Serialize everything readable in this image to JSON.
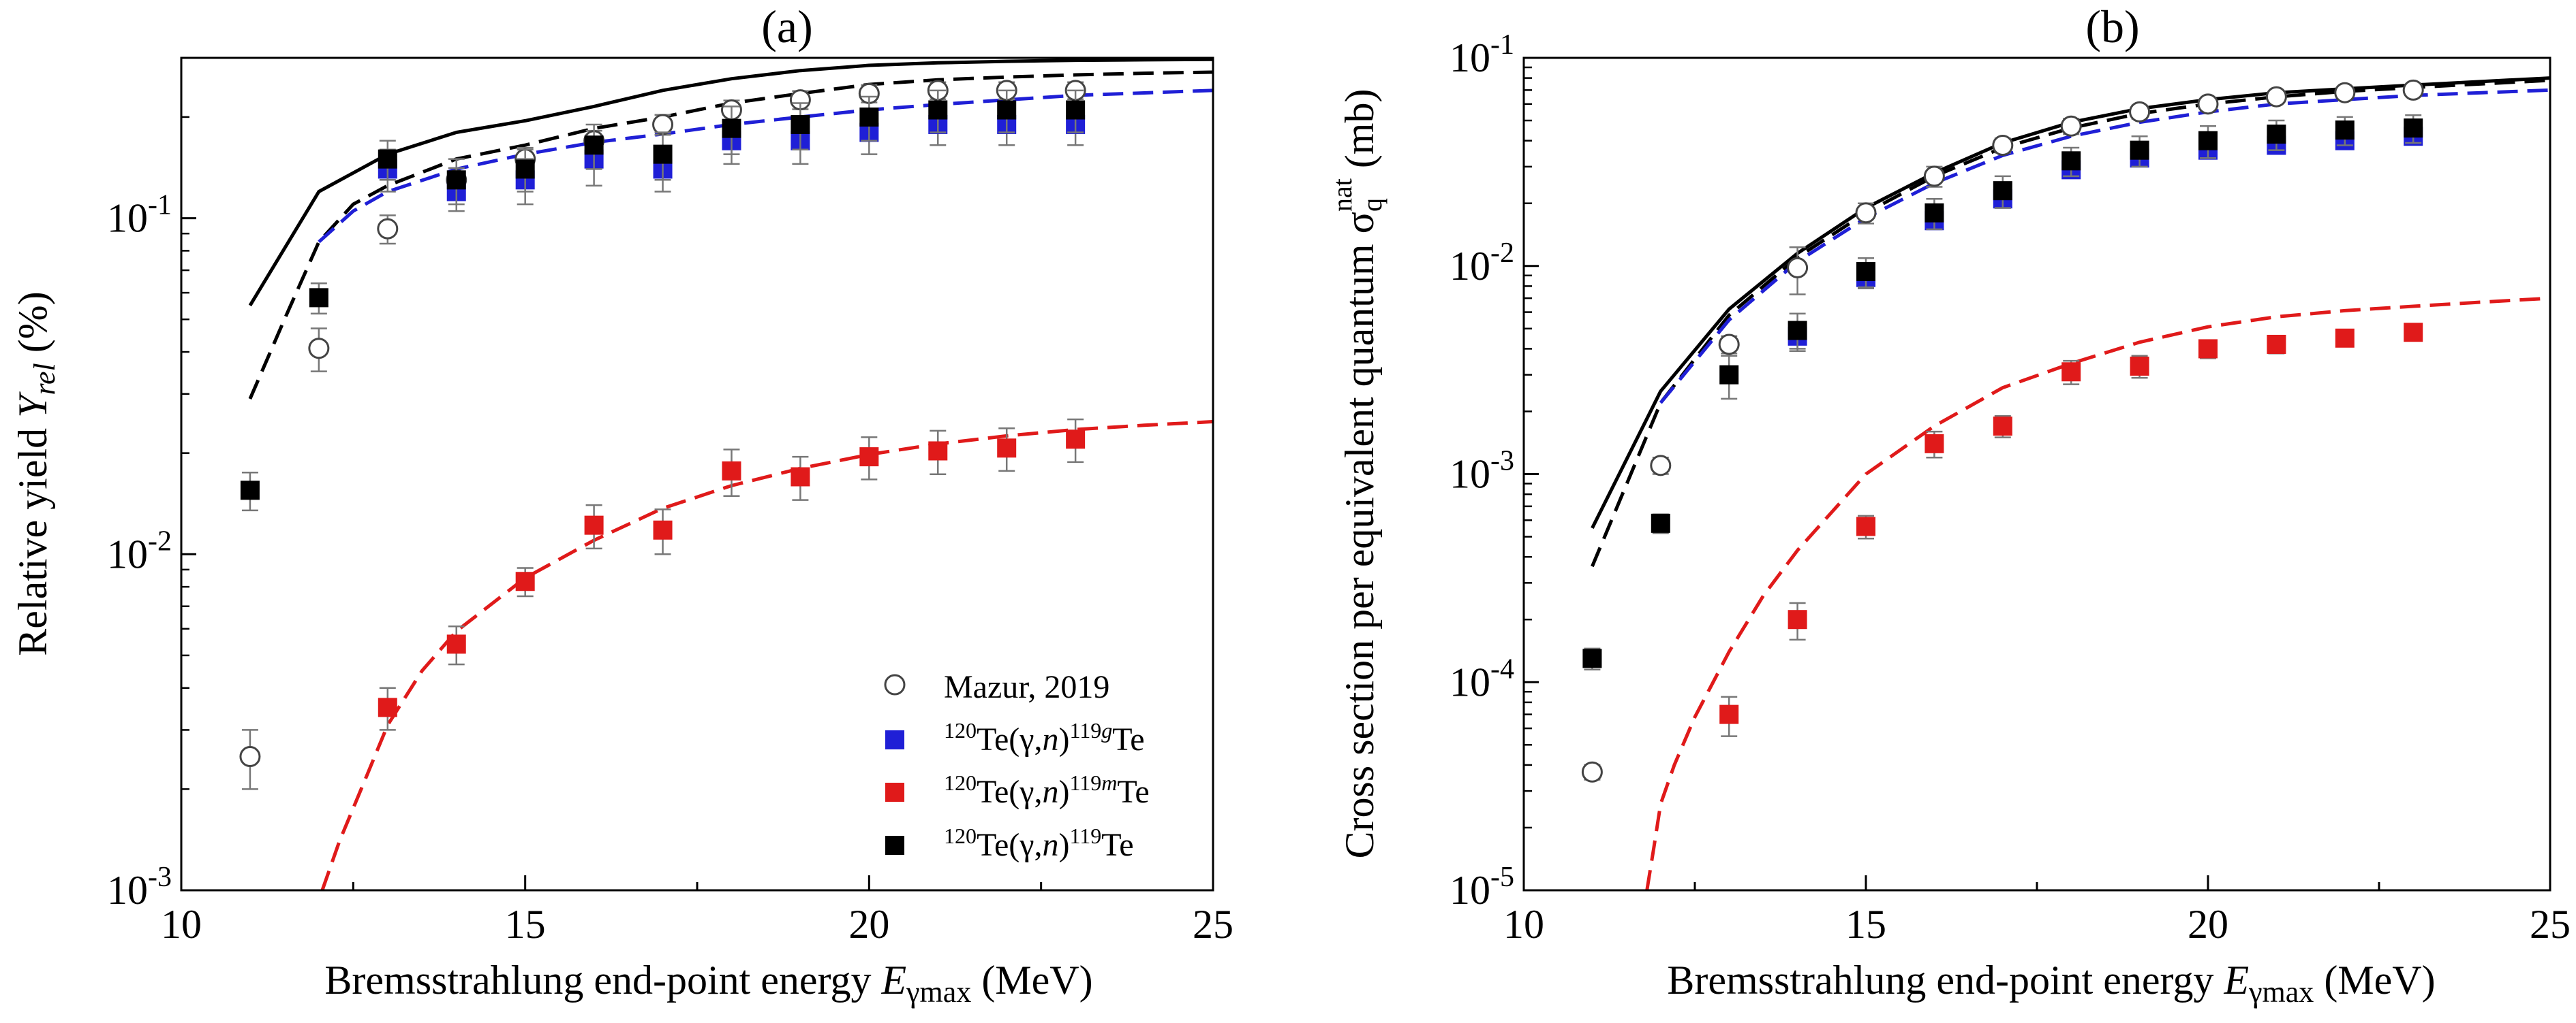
{
  "colors": {
    "black": "#000000",
    "blue": "#1f1fd6",
    "red": "#e01a1a",
    "errorbar": "#777777",
    "open_circle": "#444444"
  },
  "legend": {
    "mazur": "Mazur, 2019",
    "g_prefix": "120",
    "g_mid": "Te(γ,",
    "g_n": "n",
    "g_close": ")",
    "g_sup": "119",
    "g_state": "g",
    "g_suffix": "Te",
    "m_prefix": "120",
    "m_mid": "Te(γ,",
    "m_n": "n",
    "m_close": ")",
    "m_sup": "119",
    "m_state": "m",
    "m_suffix": "Te",
    "t_prefix": "120",
    "t_mid": "Te(γ,",
    "t_n": "n",
    "t_close": ")",
    "t_sup": "119",
    "t_suffix": "Te"
  },
  "chart_data": [
    {
      "type": "scatter",
      "panel_label": "(a)",
      "ylabel": "Relative yield Y_rel (%)",
      "ylabel_parts": {
        "text": "Relative yield ",
        "var": "Y",
        "sub": "rel",
        "unit": " (%)"
      },
      "xlabel": "Bremsstrahlung end-point energy E_γmax (MeV)",
      "xlabel_parts": {
        "text": "Bremsstrahlung end-point energy ",
        "var": "E",
        "sub": "γmax",
        "unit": " (MeV)"
      },
      "xlim": [
        10,
        25
      ],
      "ylim": [
        0.001,
        0.3
      ],
      "yscale": "log",
      "x_ticks": [
        "10",
        "15",
        "20",
        "25"
      ],
      "y_ticks": [
        {
          "value": 0.001,
          "base": "10",
          "exp": "-3"
        },
        {
          "value": 0.01,
          "base": "10",
          "exp": "-2"
        },
        {
          "value": 0.1,
          "base": "10",
          "exp": "-1"
        }
      ],
      "legend_position": "bottom-right",
      "series": [
        {
          "name": "Mazur, 2019",
          "style": "open-circle",
          "x": [
            11,
            12,
            13,
            14,
            15,
            16,
            17,
            18,
            19,
            20,
            21,
            22,
            23
          ],
          "y": [
            0.0025,
            0.041,
            0.093,
            0.13,
            0.15,
            0.17,
            0.19,
            0.21,
            0.225,
            0.235,
            0.24,
            0.24,
            0.24
          ],
          "err_low": [
            0.0005,
            0.006,
            0.009,
            0.011,
            0.012,
            0.012,
            0.013,
            0.014,
            0.014,
            0.014,
            0.014,
            0.014,
            0.014
          ],
          "err_high": [
            0.0005,
            0.006,
            0.009,
            0.011,
            0.012,
            0.012,
            0.013,
            0.014,
            0.014,
            0.014,
            0.014,
            0.014,
            0.014
          ]
        },
        {
          "name": "120Te(γ,n)119gTe",
          "style": "blue-square",
          "x": [
            13,
            14,
            15,
            16,
            17,
            18,
            19,
            20,
            21,
            22,
            23
          ],
          "y": [
            0.14,
            0.12,
            0.13,
            0.15,
            0.14,
            0.17,
            0.17,
            0.18,
            0.19,
            0.19,
            0.19
          ],
          "err_low": [
            0.02,
            0.015,
            0.02,
            0.025,
            0.02,
            0.025,
            0.025,
            0.025,
            0.025,
            0.025,
            0.025
          ],
          "err_high": [
            0.02,
            0.015,
            0.02,
            0.025,
            0.02,
            0.025,
            0.025,
            0.025,
            0.025,
            0.025,
            0.025
          ]
        },
        {
          "name": "120Te(γ,n)119mTe",
          "style": "red-square",
          "x": [
            13,
            14,
            15,
            16,
            17,
            18,
            19,
            20,
            21,
            22,
            23
          ],
          "y": [
            0.0035,
            0.0054,
            0.0083,
            0.0122,
            0.0118,
            0.0177,
            0.017,
            0.0195,
            0.0203,
            0.0207,
            0.022
          ],
          "err_low": [
            0.0005,
            0.0007,
            0.0008,
            0.0018,
            0.0018,
            0.0028,
            0.0025,
            0.0028,
            0.003,
            0.003,
            0.0032
          ],
          "err_high": [
            0.0005,
            0.0007,
            0.0008,
            0.0018,
            0.0018,
            0.0028,
            0.0025,
            0.0028,
            0.003,
            0.003,
            0.0032
          ]
        },
        {
          "name": "120Te(γ,n)119Te",
          "style": "black-square",
          "x": [
            11,
            12,
            13,
            14,
            15,
            16,
            17,
            18,
            19,
            20,
            21,
            22,
            23
          ],
          "y": [
            0.0155,
            0.058,
            0.15,
            0.13,
            0.14,
            0.165,
            0.155,
            0.185,
            0.19,
            0.2,
            0.21,
            0.21,
            0.21
          ],
          "err_low": [
            0.002,
            0.006,
            0.02,
            0.02,
            0.02,
            0.025,
            0.025,
            0.03,
            0.03,
            0.03,
            0.03,
            0.03,
            0.03
          ],
          "err_high": [
            0.002,
            0.006,
            0.02,
            0.02,
            0.02,
            0.025,
            0.025,
            0.03,
            0.03,
            0.03,
            0.03,
            0.03,
            0.03
          ]
        }
      ],
      "curves": [
        {
          "color": "black",
          "dash": "solid",
          "x": [
            11,
            12,
            13,
            14,
            15,
            16,
            17,
            18,
            19,
            20,
            21,
            22,
            23,
            24,
            25
          ],
          "y": [
            0.055,
            0.12,
            0.155,
            0.18,
            0.195,
            0.215,
            0.24,
            0.26,
            0.275,
            0.285,
            0.29,
            0.293,
            0.295,
            0.296,
            0.297
          ]
        },
        {
          "color": "black",
          "dash": "dashed",
          "x": [
            11,
            11.5,
            12,
            12.5,
            13,
            14,
            15,
            16,
            17,
            18,
            19,
            20,
            21,
            22,
            23,
            24,
            25
          ],
          "y": [
            0.029,
            0.05,
            0.085,
            0.11,
            0.125,
            0.15,
            0.165,
            0.185,
            0.2,
            0.22,
            0.235,
            0.25,
            0.258,
            0.263,
            0.267,
            0.27,
            0.272
          ]
        },
        {
          "color": "blue",
          "dash": "dashed",
          "x": [
            12,
            12.5,
            13,
            14,
            15,
            16,
            17,
            18,
            19,
            20,
            21,
            22,
            23,
            24,
            25
          ],
          "y": [
            0.085,
            0.105,
            0.12,
            0.14,
            0.155,
            0.168,
            0.178,
            0.19,
            0.2,
            0.21,
            0.218,
            0.225,
            0.232,
            0.236,
            0.24
          ]
        },
        {
          "color": "red",
          "dash": "dashed",
          "x": [
            12.05,
            12.3,
            12.7,
            13,
            13.5,
            14,
            15,
            16,
            17,
            18,
            19,
            20,
            21,
            22,
            23,
            24,
            25
          ],
          "y": [
            0.001,
            0.0014,
            0.0022,
            0.0031,
            0.0045,
            0.0059,
            0.0085,
            0.011,
            0.0137,
            0.016,
            0.018,
            0.0198,
            0.0213,
            0.0225,
            0.0235,
            0.0242,
            0.0248
          ]
        }
      ]
    },
    {
      "type": "scatter",
      "panel_label": "(b)",
      "ylabel": "Cross section per equivalent quantum σ_q^nat (mb)",
      "ylabel_parts": {
        "text": "Cross section per equivalent quantum ",
        "var": "σ",
        "sub": "q",
        "sup": "nat",
        "unit": " (mb)"
      },
      "xlabel": "Bremsstrahlung end-point energy E_γmax (MeV)",
      "xlabel_parts": {
        "text": "Bremsstrahlung end-point energy ",
        "var": "E",
        "sub": "γmax",
        "unit": " (MeV)"
      },
      "xlim": [
        10,
        25
      ],
      "ylim": [
        1e-05,
        0.1
      ],
      "yscale": "log",
      "x_ticks": [
        "10",
        "15",
        "20",
        "25"
      ],
      "y_ticks": [
        {
          "value": 1e-05,
          "base": "10",
          "exp": "-5"
        },
        {
          "value": 0.0001,
          "base": "10",
          "exp": "-4"
        },
        {
          "value": 0.001,
          "base": "10",
          "exp": "-3"
        },
        {
          "value": 0.01,
          "base": "10",
          "exp": "-2"
        },
        {
          "value": 0.1,
          "base": "10",
          "exp": "-1"
        }
      ],
      "series": [
        {
          "name": "Mazur, 2019",
          "style": "open-circle",
          "x": [
            11,
            12,
            13,
            14,
            15,
            16,
            17,
            18,
            19,
            20,
            21,
            22,
            23
          ],
          "y": [
            3.7e-05,
            0.0011,
            0.0042,
            0.0098,
            0.018,
            0.027,
            0.038,
            0.047,
            0.055,
            0.06,
            0.065,
            0.068,
            0.07
          ],
          "err_low": [
            3e-06,
            0.0001,
            0.0004,
            0.0025,
            0.002,
            0.003,
            0.003,
            0.004,
            0.004,
            0.004,
            0.004,
            0.004,
            0.004
          ],
          "err_high": [
            3e-06,
            0.0001,
            0.0004,
            0.0025,
            0.002,
            0.003,
            0.003,
            0.004,
            0.004,
            0.004,
            0.004,
            0.004,
            0.004
          ]
        },
        {
          "name": "120Te(γ,n)119gTe",
          "style": "blue-square",
          "x": [
            14,
            15,
            16,
            17,
            18,
            19,
            20,
            21,
            22,
            23
          ],
          "y": [
            0.0046,
            0.0088,
            0.0165,
            0.021,
            0.029,
            0.033,
            0.036,
            0.038,
            0.04,
            0.042
          ],
          "err_low": [
            0.0006,
            0.001,
            0.0015,
            0.002,
            0.002,
            0.002,
            0.002,
            0.002,
            0.002,
            0.002
          ],
          "err_high": [
            0.0006,
            0.001,
            0.0015,
            0.002,
            0.002,
            0.002,
            0.002,
            0.002,
            0.002,
            0.002
          ]
        },
        {
          "name": "120Te(γ,n)119mTe",
          "style": "red-square",
          "x": [
            13,
            14,
            15,
            16,
            17,
            18,
            19,
            20,
            21,
            22,
            23
          ],
          "y": [
            7e-05,
            0.0002,
            0.00056,
            0.0014,
            0.0017,
            0.0031,
            0.0033,
            0.004,
            0.0042,
            0.0045,
            0.0048
          ],
          "err_low": [
            1.5e-05,
            4e-05,
            7e-05,
            0.0002,
            0.0002,
            0.0004,
            0.0004,
            0.0004,
            0.0004,
            0.0004,
            0.0004
          ],
          "err_high": [
            1.5e-05,
            4e-05,
            7e-05,
            0.0002,
            0.0002,
            0.0004,
            0.0004,
            0.0004,
            0.0004,
            0.0004,
            0.0004
          ]
        },
        {
          "name": "120Te(γ,n)119Te",
          "style": "black-square",
          "x": [
            11,
            12,
            13,
            14,
            15,
            16,
            17,
            18,
            19,
            20,
            21,
            22,
            23
          ],
          "y": [
            0.00013,
            0.00058,
            0.003,
            0.0049,
            0.0094,
            0.018,
            0.023,
            0.032,
            0.036,
            0.04,
            0.043,
            0.045,
            0.046
          ],
          "err_low": [
            1.5e-05,
            6e-05,
            0.0007,
            0.001,
            0.0015,
            0.003,
            0.004,
            0.005,
            0.006,
            0.007,
            0.007,
            0.007,
            0.007
          ],
          "err_high": [
            1.5e-05,
            6e-05,
            0.0007,
            0.001,
            0.0015,
            0.003,
            0.004,
            0.005,
            0.006,
            0.007,
            0.007,
            0.007,
            0.007
          ]
        }
      ],
      "curves": [
        {
          "color": "black",
          "dash": "solid",
          "x": [
            11,
            12,
            13,
            14,
            15,
            16,
            17,
            18,
            19,
            20,
            21,
            22,
            23,
            24,
            25
          ],
          "y": [
            0.00055,
            0.0025,
            0.0062,
            0.0115,
            0.019,
            0.028,
            0.039,
            0.049,
            0.057,
            0.063,
            0.068,
            0.071,
            0.074,
            0.077,
            0.08
          ]
        },
        {
          "color": "black",
          "dash": "dashed",
          "x": [
            11,
            12,
            13,
            14,
            15,
            16,
            17,
            18,
            19,
            20,
            21,
            22,
            23,
            24,
            25
          ],
          "y": [
            0.00036,
            0.0022,
            0.0058,
            0.011,
            0.018,
            0.027,
            0.037,
            0.046,
            0.054,
            0.06,
            0.065,
            0.069,
            0.072,
            0.075,
            0.078
          ]
        },
        {
          "color": "blue",
          "dash": "dashed",
          "x": [
            12,
            13,
            14,
            15,
            16,
            17,
            18,
            19,
            20,
            21,
            22,
            23,
            24,
            25
          ],
          "y": [
            0.0022,
            0.0055,
            0.0105,
            0.017,
            0.025,
            0.034,
            0.042,
            0.049,
            0.055,
            0.06,
            0.063,
            0.066,
            0.068,
            0.07
          ]
        },
        {
          "color": "red",
          "dash": "dashed",
          "x": [
            11.8,
            11.9,
            12,
            12.2,
            12.5,
            13,
            13.5,
            14,
            15,
            16,
            17,
            18,
            19,
            20,
            21,
            22,
            23,
            24,
            25
          ],
          "y": [
            1e-05,
            1.6e-05,
            2.6e-05,
            4e-05,
            6.8e-05,
            0.00014,
            0.00026,
            0.00043,
            0.001,
            0.0017,
            0.0026,
            0.0034,
            0.0043,
            0.0051,
            0.0057,
            0.0061,
            0.0064,
            0.0067,
            0.007
          ]
        }
      ]
    }
  ]
}
